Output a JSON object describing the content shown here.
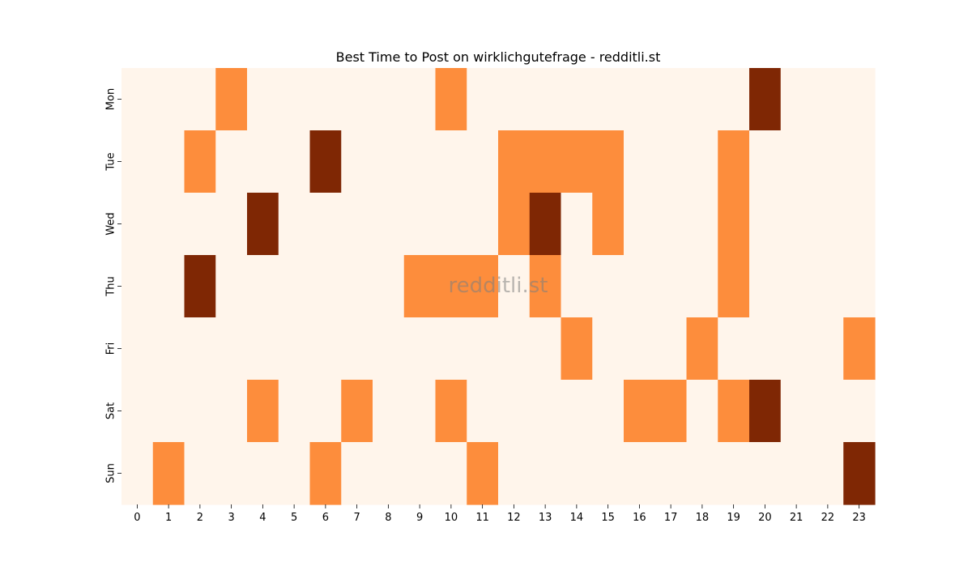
{
  "chart_data": {
    "type": "heatmap",
    "title": "Best Time to Post on wirklichgutefrage - redditli.st",
    "xlabel": "",
    "ylabel": "",
    "x_categories": [
      "0",
      "1",
      "2",
      "3",
      "4",
      "5",
      "6",
      "7",
      "8",
      "9",
      "10",
      "11",
      "12",
      "13",
      "14",
      "15",
      "16",
      "17",
      "18",
      "19",
      "20",
      "21",
      "22",
      "23"
    ],
    "y_categories": [
      "Mon",
      "Tue",
      "Wed",
      "Thu",
      "Fri",
      "Sat",
      "Sun"
    ],
    "values": [
      [
        0,
        0,
        0,
        1,
        0,
        0,
        0,
        0,
        0,
        0,
        1,
        0,
        0,
        0,
        0,
        0,
        0,
        0,
        0,
        0,
        2,
        0,
        0,
        0
      ],
      [
        0,
        0,
        1,
        0,
        0,
        0,
        2,
        0,
        0,
        0,
        0,
        0,
        1,
        1,
        1,
        1,
        0,
        0,
        0,
        1,
        0,
        0,
        0,
        0
      ],
      [
        0,
        0,
        0,
        0,
        2,
        0,
        0,
        0,
        0,
        0,
        0,
        0,
        1,
        2,
        0,
        1,
        0,
        0,
        0,
        1,
        0,
        0,
        0,
        0
      ],
      [
        0,
        0,
        2,
        0,
        0,
        0,
        0,
        0,
        0,
        1,
        1,
        1,
        0,
        1,
        0,
        0,
        0,
        0,
        0,
        1,
        0,
        0,
        0,
        0
      ],
      [
        0,
        0,
        0,
        0,
        0,
        0,
        0,
        0,
        0,
        0,
        0,
        0,
        0,
        0,
        1,
        0,
        0,
        0,
        1,
        0,
        0,
        0,
        0,
        1
      ],
      [
        0,
        0,
        0,
        0,
        1,
        0,
        0,
        1,
        0,
        0,
        1,
        0,
        0,
        0,
        0,
        0,
        1,
        1,
        0,
        1,
        2,
        0,
        0,
        0
      ],
      [
        0,
        1,
        0,
        0,
        0,
        0,
        1,
        0,
        0,
        0,
        0,
        1,
        0,
        0,
        0,
        0,
        0,
        0,
        0,
        0,
        0,
        0,
        0,
        2
      ]
    ],
    "colormap": "Oranges",
    "colors": [
      "#fff5eb",
      "#fd8d3c",
      "#7f2704"
    ],
    "watermark": "redditli.st",
    "grid": false,
    "legend": "none"
  }
}
